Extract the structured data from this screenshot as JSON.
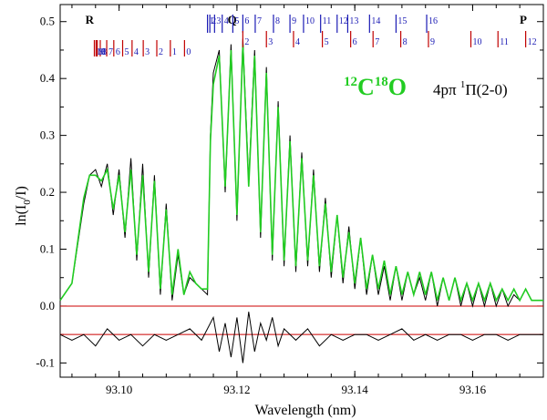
{
  "chart_data": {
    "type": "line",
    "xlabel": "Wavelength (nm)",
    "ylabel_main": "ln(I",
    "ylabel_sub": "0",
    "ylabel_tail": "/I)",
    "xlim": [
      93.09,
      93.172
    ],
    "ylim": [
      -0.125,
      0.53
    ],
    "xticks": [
      93.1,
      93.12,
      93.14,
      93.16
    ],
    "xtick_labels": [
      "93.10",
      "93.12",
      "93.14",
      "93.16"
    ],
    "yticks": [
      -0.1,
      0.0,
      0.1,
      0.2,
      0.3,
      0.4,
      0.5
    ],
    "ytick_labels": [
      "-0.1",
      "0.0",
      "0.1",
      "0.2",
      "0.3",
      "0.4",
      "0.5"
    ],
    "title": {
      "sup1": "12",
      "C": "C",
      "sup2": "18",
      "O": "O",
      "band": "4pπ ",
      "band_sup": "1",
      "band_tail": "Π(2-0)"
    },
    "colors": {
      "fit": "#22cc22",
      "observed": "#000000",
      "baseline": "#cc0000",
      "tick_blue": "#1a1ab4",
      "tick_red": "#c00000",
      "title": "#22cc22"
    },
    "baselines": [
      0.0,
      -0.05
    ],
    "branch_labels": [
      {
        "text": "R",
        "x": 93.095
      },
      {
        "text": "Q",
        "x": 93.1192
      },
      {
        "text": "P",
        "x": 93.1686
      }
    ],
    "r_branch": [
      {
        "j": "0",
        "x": 93.1111
      },
      {
        "j": "1",
        "x": 93.1087
      },
      {
        "j": "2",
        "x": 93.1064
      },
      {
        "j": "3",
        "x": 93.1041
      },
      {
        "j": "4",
        "x": 93.1022
      },
      {
        "j": "5",
        "x": 93.1006
      },
      {
        "j": "6",
        "x": 93.0991
      },
      {
        "j": "7",
        "x": 93.0979
      },
      {
        "j": "8",
        "x": 93.0968
      },
      {
        "j": "9",
        "x": 93.0963
      },
      {
        "j": "10",
        "x": 93.0958
      },
      {
        "j": "11",
        "x": 93.0961
      }
    ],
    "q_branch": [
      {
        "j": "1",
        "x": 93.115
      },
      {
        "j": "2",
        "x": 93.1154
      },
      {
        "j": "3",
        "x": 93.1162
      },
      {
        "j": "4",
        "x": 93.1175
      },
      {
        "j": "5",
        "x": 93.1193
      },
      {
        "j": "6",
        "x": 93.121
      },
      {
        "j": "7",
        "x": 93.1231
      },
      {
        "j": "8",
        "x": 93.1262
      },
      {
        "j": "9",
        "x": 93.129
      },
      {
        "j": "10",
        "x": 93.1313
      },
      {
        "j": "11",
        "x": 93.1342
      },
      {
        "j": "12",
        "x": 93.137
      },
      {
        "j": "13",
        "x": 93.1388
      },
      {
        "j": "14",
        "x": 93.1425
      },
      {
        "j": "15",
        "x": 93.147
      },
      {
        "j": "16",
        "x": 93.1522
      }
    ],
    "p_branch": [
      {
        "j": "2",
        "x": 93.121
      },
      {
        "j": "3",
        "x": 93.125
      },
      {
        "j": "4",
        "x": 93.1296
      },
      {
        "j": "5",
        "x": 93.1345
      },
      {
        "j": "6",
        "x": 93.1393
      },
      {
        "j": "7",
        "x": 93.1431
      },
      {
        "j": "8",
        "x": 93.1478
      },
      {
        "j": "9",
        "x": 93.1525
      },
      {
        "j": "10",
        "x": 93.1597
      },
      {
        "j": "11",
        "x": 93.1643
      },
      {
        "j": "12",
        "x": 93.169
      }
    ],
    "series": [
      {
        "role": "observed",
        "x": [
          93.09,
          93.092,
          93.094,
          93.095,
          93.096,
          93.097,
          93.098,
          93.099,
          93.1,
          93.101,
          93.102,
          93.103,
          93.104,
          93.105,
          93.106,
          93.107,
          93.108,
          93.109,
          93.11,
          93.111,
          93.112,
          93.113,
          93.114,
          93.115,
          93.1155,
          93.116,
          93.117,
          93.118,
          93.119,
          93.12,
          93.121,
          93.122,
          93.123,
          93.124,
          93.125,
          93.126,
          93.127,
          93.128,
          93.129,
          93.13,
          93.131,
          93.132,
          93.133,
          93.134,
          93.135,
          93.136,
          93.137,
          93.138,
          93.139,
          93.14,
          93.141,
          93.142,
          93.143,
          93.144,
          93.145,
          93.146,
          93.147,
          93.148,
          93.149,
          93.15,
          93.151,
          93.152,
          93.153,
          93.154,
          93.155,
          93.156,
          93.157,
          93.158,
          93.159,
          93.16,
          93.161,
          93.162,
          93.163,
          93.164,
          93.165,
          93.166,
          93.167,
          93.168,
          93.169,
          93.17,
          93.171,
          93.172
        ],
        "y": [
          0.01,
          0.04,
          0.18,
          0.23,
          0.24,
          0.21,
          0.25,
          0.16,
          0.24,
          0.12,
          0.26,
          0.08,
          0.25,
          0.05,
          0.23,
          0.02,
          0.18,
          0.01,
          0.09,
          0.02,
          0.05,
          0.04,
          0.03,
          0.02,
          0.3,
          0.41,
          0.45,
          0.2,
          0.46,
          0.15,
          0.47,
          0.22,
          0.45,
          0.12,
          0.42,
          0.08,
          0.36,
          0.07,
          0.3,
          0.06,
          0.27,
          0.07,
          0.24,
          0.06,
          0.19,
          0.05,
          0.16,
          0.04,
          0.14,
          0.03,
          0.12,
          0.02,
          0.09,
          0.02,
          0.07,
          0.01,
          0.07,
          0.01,
          0.06,
          0.02,
          0.05,
          0.01,
          0.06,
          0.0,
          0.05,
          0.01,
          0.05,
          0.0,
          0.04,
          0.0,
          0.04,
          0.0,
          0.04,
          0.0,
          0.03,
          0.0,
          0.02,
          0.01,
          0.03,
          0.01,
          0.01,
          0.01
        ]
      },
      {
        "role": "fit",
        "x": [
          93.09,
          93.092,
          93.094,
          93.095,
          93.096,
          93.097,
          93.098,
          93.099,
          93.1,
          93.101,
          93.102,
          93.103,
          93.104,
          93.105,
          93.106,
          93.107,
          93.108,
          93.109,
          93.11,
          93.111,
          93.112,
          93.113,
          93.114,
          93.115,
          93.1155,
          93.116,
          93.117,
          93.118,
          93.119,
          93.12,
          93.121,
          93.122,
          93.123,
          93.124,
          93.125,
          93.126,
          93.127,
          93.128,
          93.129,
          93.13,
          93.131,
          93.132,
          93.133,
          93.134,
          93.135,
          93.136,
          93.137,
          93.138,
          93.139,
          93.14,
          93.141,
          93.142,
          93.143,
          93.144,
          93.145,
          93.146,
          93.147,
          93.148,
          93.149,
          93.15,
          93.151,
          93.152,
          93.153,
          93.154,
          93.155,
          93.156,
          93.157,
          93.158,
          93.159,
          93.16,
          93.161,
          93.162,
          93.163,
          93.164,
          93.165,
          93.166,
          93.167,
          93.168,
          93.169,
          93.17,
          93.171,
          93.172
        ],
        "y": [
          0.01,
          0.04,
          0.19,
          0.23,
          0.23,
          0.22,
          0.24,
          0.17,
          0.23,
          0.13,
          0.24,
          0.09,
          0.23,
          0.06,
          0.22,
          0.03,
          0.17,
          0.02,
          0.1,
          0.02,
          0.06,
          0.04,
          0.03,
          0.03,
          0.29,
          0.39,
          0.44,
          0.21,
          0.45,
          0.16,
          0.46,
          0.21,
          0.44,
          0.13,
          0.41,
          0.09,
          0.35,
          0.08,
          0.29,
          0.07,
          0.26,
          0.08,
          0.23,
          0.07,
          0.18,
          0.06,
          0.16,
          0.05,
          0.13,
          0.04,
          0.12,
          0.03,
          0.09,
          0.03,
          0.08,
          0.02,
          0.07,
          0.02,
          0.06,
          0.02,
          0.06,
          0.02,
          0.06,
          0.01,
          0.05,
          0.01,
          0.05,
          0.01,
          0.04,
          0.01,
          0.04,
          0.01,
          0.04,
          0.01,
          0.03,
          0.01,
          0.03,
          0.01,
          0.03,
          0.01,
          0.01,
          0.01
        ]
      },
      {
        "role": "residual",
        "x": [
          93.09,
          93.092,
          93.094,
          93.096,
          93.098,
          93.1,
          93.102,
          93.104,
          93.106,
          93.108,
          93.11,
          93.112,
          93.114,
          93.116,
          93.117,
          93.118,
          93.119,
          93.12,
          93.121,
          93.122,
          93.123,
          93.124,
          93.125,
          93.126,
          93.127,
          93.128,
          93.13,
          93.132,
          93.134,
          93.136,
          93.138,
          93.14,
          93.142,
          93.144,
          93.146,
          93.148,
          93.15,
          93.152,
          93.154,
          93.156,
          93.158,
          93.16,
          93.162,
          93.164,
          93.166,
          93.168,
          93.17,
          93.172
        ],
        "y": [
          -0.05,
          -0.06,
          -0.05,
          -0.07,
          -0.04,
          -0.06,
          -0.05,
          -0.07,
          -0.05,
          -0.06,
          -0.05,
          -0.04,
          -0.06,
          -0.02,
          -0.08,
          -0.03,
          -0.09,
          -0.02,
          -0.1,
          -0.01,
          -0.08,
          -0.03,
          -0.06,
          -0.02,
          -0.07,
          -0.04,
          -0.06,
          -0.04,
          -0.07,
          -0.05,
          -0.06,
          -0.05,
          -0.05,
          -0.06,
          -0.05,
          -0.04,
          -0.06,
          -0.05,
          -0.06,
          -0.05,
          -0.05,
          -0.06,
          -0.05,
          -0.05,
          -0.06,
          -0.05,
          -0.05,
          -0.05
        ]
      }
    ]
  }
}
